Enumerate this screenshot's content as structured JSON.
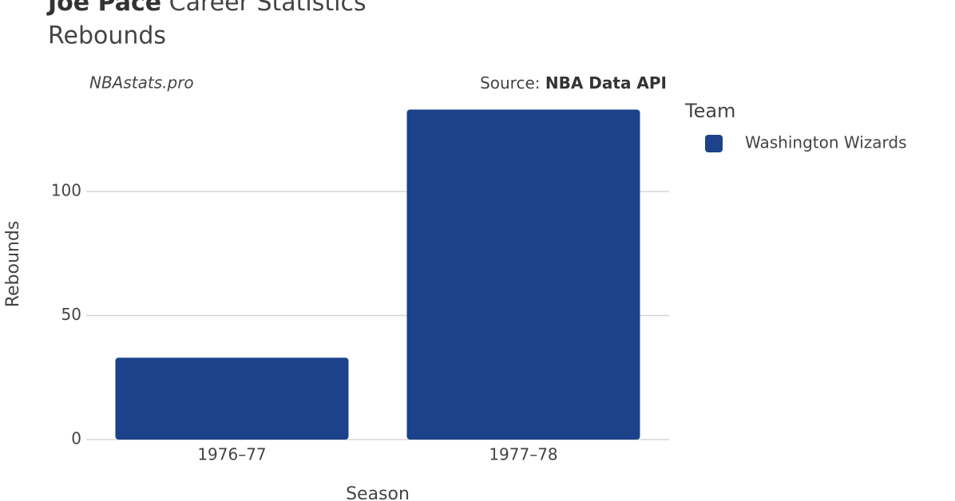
{
  "chart_data": {
    "type": "bar",
    "title_bold": "Joe Pace",
    "title": "Career Statistics",
    "subtitle": "Rebounds",
    "watermark": "NBAstats.pro",
    "source_label": "Source:",
    "source": "NBA Data API",
    "x_label": "Season",
    "y_label": "Rebounds",
    "categories": [
      "1976–77",
      "1977–78"
    ],
    "series": [
      {
        "name": "Washington Wizards",
        "color": "#1b428a",
        "values": [
          33,
          133
        ]
      }
    ],
    "legend_title": "Team",
    "legend": "right",
    "ylim": [
      0,
      140
    ],
    "yticks": [
      0,
      50,
      100
    ],
    "grid": true
  }
}
